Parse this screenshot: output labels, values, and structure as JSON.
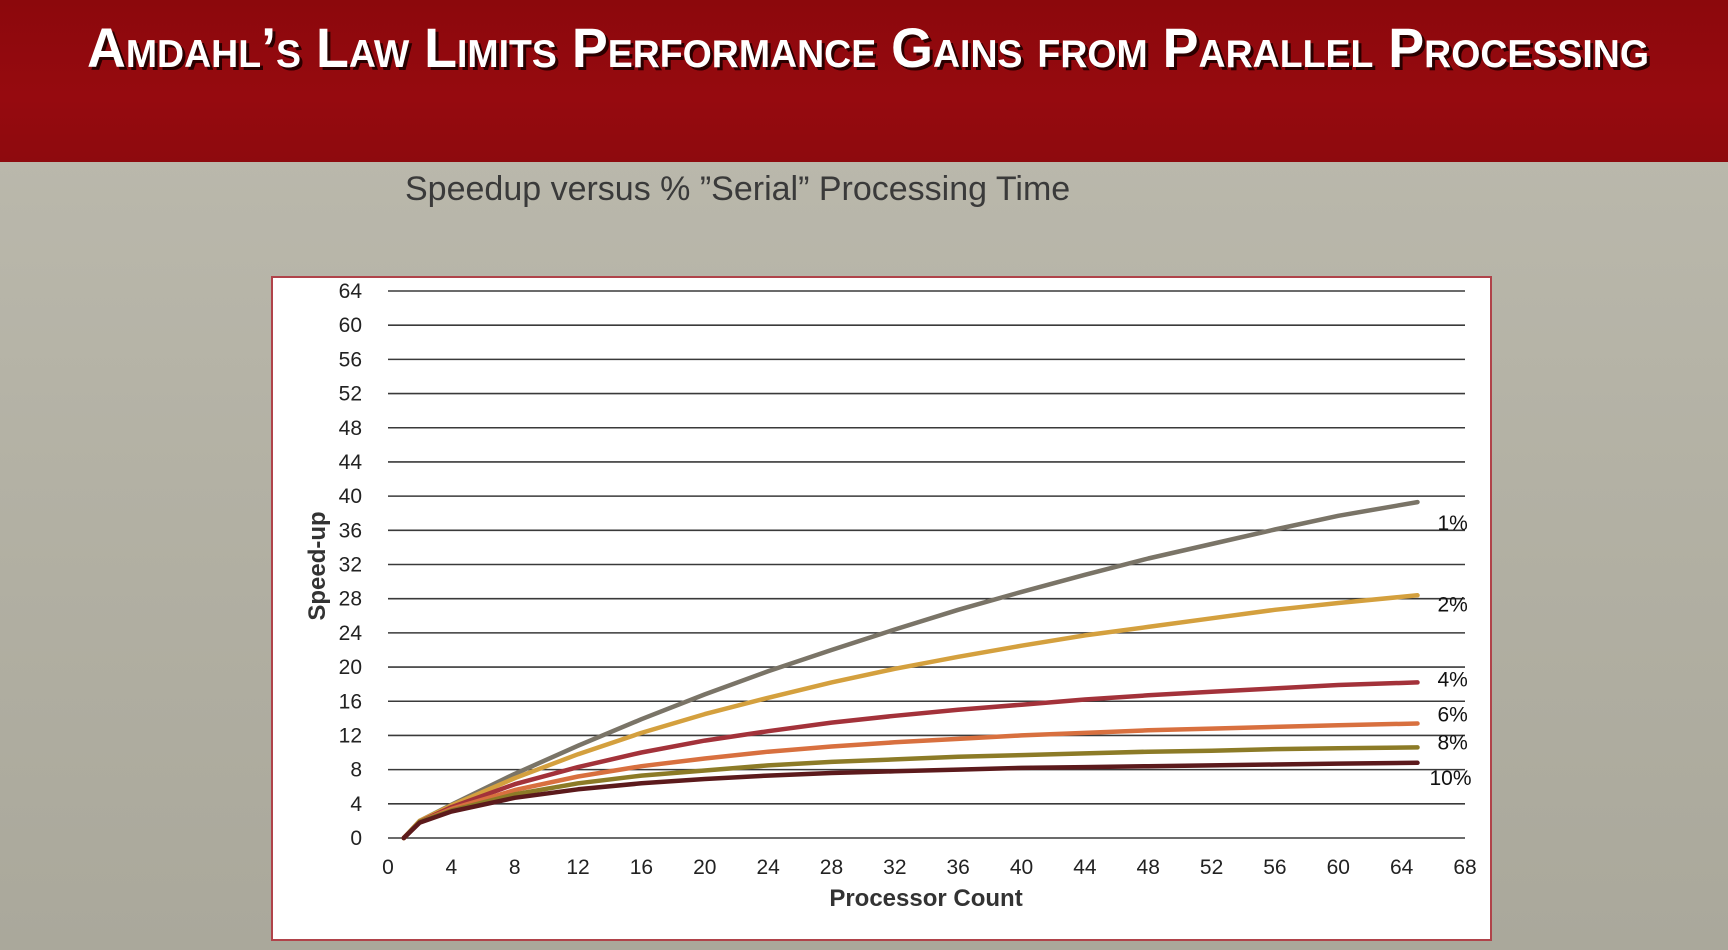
{
  "slide": {
    "title": "Amdahl’s Law Limits Performance Gains from Parallel Processing",
    "header_color": "#8e0a0e"
  },
  "chart_data": {
    "type": "line",
    "title": "Speedup versus % ”Serial” Processing Time",
    "xlabel": "Processor Count",
    "ylabel": "Speed-up",
    "xlim": [
      0,
      68
    ],
    "ylim": [
      0,
      64
    ],
    "xticks": [
      0,
      4,
      8,
      12,
      16,
      20,
      24,
      28,
      32,
      36,
      40,
      44,
      48,
      52,
      56,
      60,
      64,
      68
    ],
    "yticks": [
      0,
      4,
      8,
      12,
      16,
      20,
      24,
      28,
      32,
      36,
      40,
      44,
      48,
      52,
      56,
      60,
      64
    ],
    "grid": "horizontal",
    "legend": "inline labels at line ends (right)",
    "x": [
      1,
      2,
      4,
      8,
      12,
      16,
      20,
      24,
      28,
      32,
      36,
      40,
      44,
      48,
      52,
      56,
      60,
      65
    ],
    "series": [
      {
        "name": "1%",
        "color": "#7a7467",
        "values": [
          0,
          2.0,
          3.9,
          7.5,
          10.8,
          13.9,
          16.8,
          19.5,
          22.0,
          24.4,
          26.7,
          28.8,
          30.8,
          32.7,
          34.4,
          36.1,
          37.7,
          39.3
        ]
      },
      {
        "name": "2%",
        "color": "#d4a03e",
        "values": [
          0,
          2.0,
          3.8,
          7.0,
          9.8,
          12.3,
          14.5,
          16.4,
          18.2,
          19.8,
          21.2,
          22.5,
          23.7,
          24.7,
          25.7,
          26.7,
          27.5,
          28.4
        ]
      },
      {
        "name": "4%",
        "color": "#a3323a",
        "values": [
          0,
          1.9,
          3.6,
          6.3,
          8.3,
          10.0,
          11.4,
          12.5,
          13.5,
          14.3,
          15.0,
          15.6,
          16.2,
          16.7,
          17.1,
          17.5,
          17.9,
          18.2
        ]
      },
      {
        "name": "6%",
        "color": "#d8703f",
        "values": [
          0,
          1.9,
          3.4,
          5.6,
          7.2,
          8.4,
          9.3,
          10.1,
          10.7,
          11.2,
          11.6,
          12.0,
          12.3,
          12.6,
          12.8,
          13.0,
          13.2,
          13.4
        ]
      },
      {
        "name": "8%",
        "color": "#8c7b27",
        "values": [
          0,
          1.9,
          3.2,
          5.1,
          6.4,
          7.3,
          7.9,
          8.5,
          8.9,
          9.2,
          9.5,
          9.7,
          9.9,
          10.1,
          10.2,
          10.4,
          10.5,
          10.6
        ]
      },
      {
        "name": "10%",
        "color": "#5c1a1c",
        "values": [
          0,
          1.8,
          3.1,
          4.7,
          5.7,
          6.4,
          6.9,
          7.3,
          7.6,
          7.8,
          8.0,
          8.2,
          8.3,
          8.4,
          8.5,
          8.6,
          8.7,
          8.8
        ]
      }
    ]
  }
}
